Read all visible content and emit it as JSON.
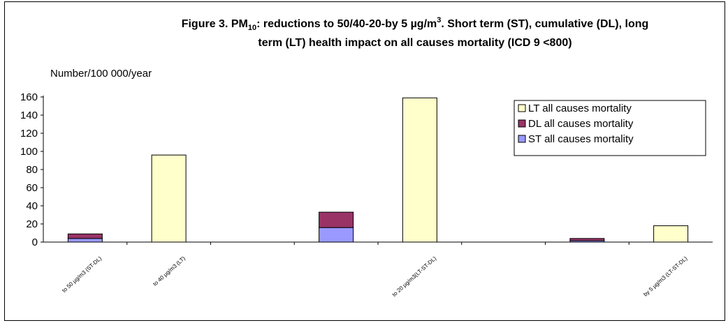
{
  "chart_data": {
    "type": "bar",
    "stacked": true,
    "title": {
      "line1_prefix": "Figure 3. PM",
      "line1_sub": "10",
      "line1_mid": ": reductions to 50/40-20-by 5 µg/m",
      "line1_sup": "3",
      "line1_suffix": ".  Short term (ST), cumulative (DL), long",
      "line2": "term (LT) health impact on all causes mortality (ICD 9 <800)"
    },
    "ylabel": "Number/100 000/year",
    "xlabel": "",
    "ylim": [
      0,
      160
    ],
    "yticks": [
      "0",
      "20",
      "40",
      "60",
      "80",
      "100",
      "120",
      "140",
      "160"
    ],
    "grid": false,
    "legend_position": "top-right",
    "categories": [
      "to 50 µg/m3 (ST-DL)",
      "to 40 µg/m3 (LT)",
      "",
      "to 20 µg/m3(LT-ST-DL)",
      "",
      "",
      "by 5 µg/m3 (LT-ST-DL)"
    ],
    "category_label_visible": [
      true,
      true,
      false,
      true,
      false,
      false,
      true
    ],
    "bar_values": [
      {
        "ST": 4,
        "DL": 5,
        "LT": 0
      },
      {
        "ST": 0,
        "DL": 0,
        "LT": 96
      },
      {
        "ST": 16,
        "DL": 17,
        "LT": 0
      },
      {
        "ST": 0,
        "DL": 0,
        "LT": 159
      },
      {
        "ST": 1.5,
        "DL": 2.5,
        "LT": 0
      },
      {
        "ST": 0,
        "DL": 0,
        "LT": 18
      }
    ],
    "bar_slots": [
      0,
      1,
      3,
      4,
      6,
      7
    ],
    "slot_count": 8,
    "series": [
      {
        "key": "LT",
        "name": "LT all causes mortality",
        "color": "#ffffcc"
      },
      {
        "key": "DL",
        "name": "DL all causes mortality",
        "color": "#993366"
      },
      {
        "key": "ST",
        "name": "ST all causes mortality",
        "color": "#9999ff"
      }
    ]
  }
}
